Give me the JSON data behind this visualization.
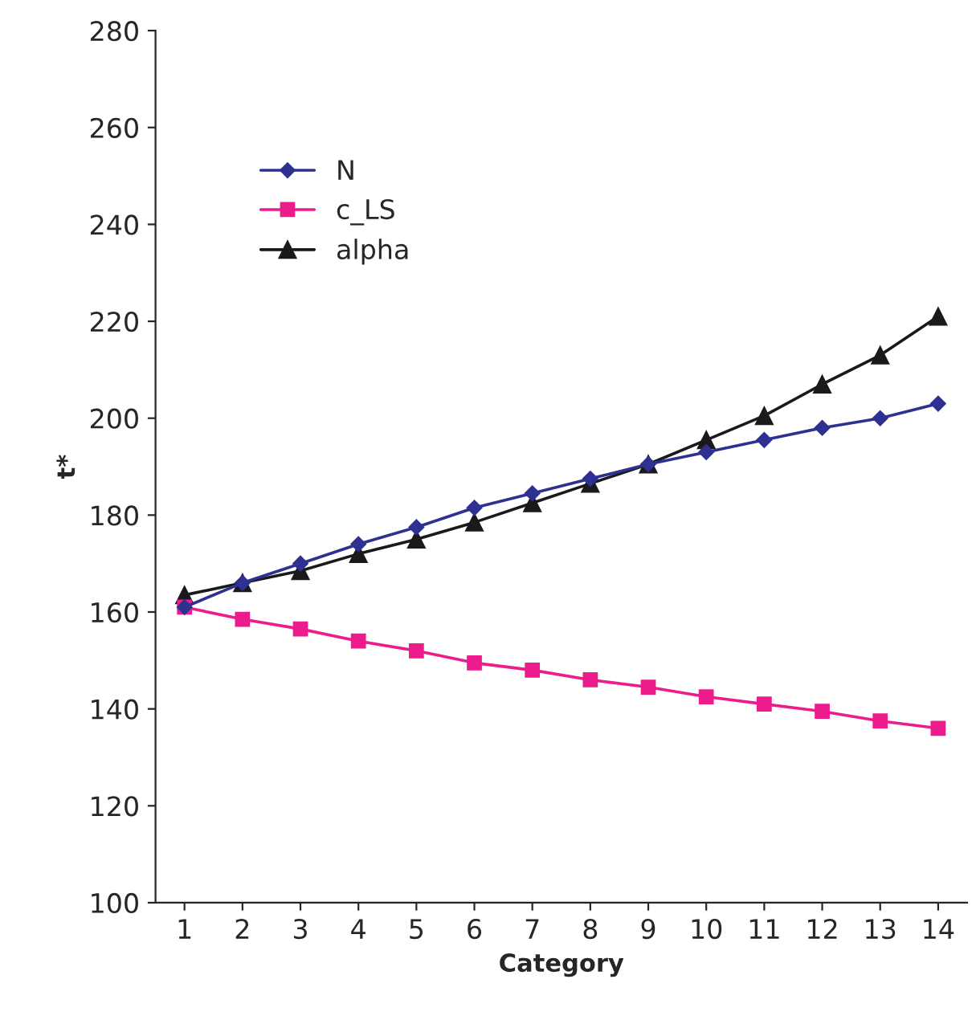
{
  "chart_data": {
    "type": "line",
    "xlabel": "Category",
    "ylabel": "t*",
    "categories": [
      "1",
      "2",
      "3",
      "4",
      "5",
      "6",
      "7",
      "8",
      "9",
      "10",
      "11",
      "12",
      "13",
      "14"
    ],
    "series": [
      {
        "name": "N",
        "color": "#2e3192",
        "marker": "diamond",
        "values": [
          161,
          166,
          170,
          174,
          177.5,
          181.5,
          184.5,
          187.5,
          190.5,
          193,
          195.5,
          198,
          200,
          203
        ]
      },
      {
        "name": "c_LS",
        "color": "#ec1c8c",
        "marker": "square",
        "values": [
          161,
          158.5,
          156.5,
          154,
          152,
          149.5,
          148,
          146,
          144.5,
          142.5,
          141,
          139.5,
          137.5,
          136
        ]
      },
      {
        "name": "alpha",
        "color": "#1a1a1a",
        "marker": "triangle",
        "values": [
          163.5,
          166,
          168.5,
          172,
          175,
          178.5,
          182.5,
          186.5,
          190.5,
          195.5,
          200.5,
          207,
          213,
          221
        ]
      }
    ],
    "ylim": [
      100,
      280
    ],
    "yticks": [
      100,
      120,
      140,
      160,
      180,
      200,
      220,
      240,
      260,
      280
    ],
    "grid": false,
    "legend": "top left"
  }
}
